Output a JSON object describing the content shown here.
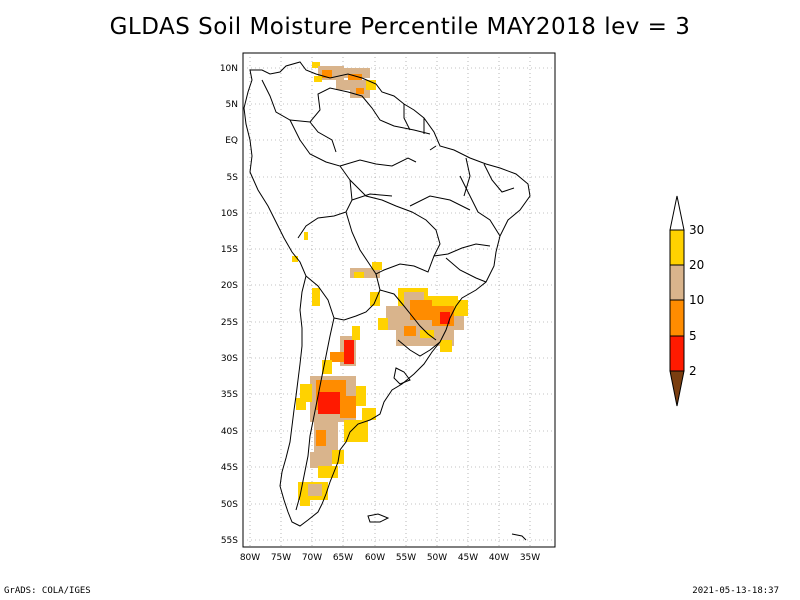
{
  "title": "GLDAS Soil Moisture Percentile MAY2018 lev = 3",
  "footer": {
    "left": "GrADS: COLA/IGES",
    "right": "2021-05-13-18:37"
  },
  "map": {
    "lat_labels": [
      "10N",
      "5N",
      "EQ",
      "5S",
      "10S",
      "15S",
      "20S",
      "25S",
      "30S",
      "35S",
      "40S",
      "45S",
      "50S",
      "55S"
    ],
    "lon_labels": [
      "80W",
      "75W",
      "70W",
      "65W",
      "60W",
      "55W",
      "50W",
      "45W",
      "40W",
      "35W"
    ],
    "grid_lines": "dotted",
    "region": "South America"
  },
  "legend": {
    "labels": [
      "2",
      "5",
      "10",
      "20",
      "30"
    ],
    "colors": {
      "below_2": "#7a3e10",
      "2_to_5": "#ff1a00",
      "5_to_10": "#ff8c00",
      "10_to_20": "#d9b48c",
      "20_to_30": "#ffd200",
      "above_30": "#ffffff"
    }
  }
}
